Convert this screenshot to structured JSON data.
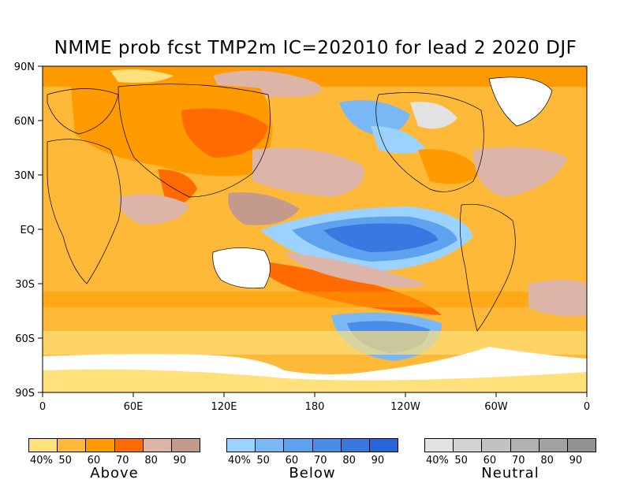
{
  "title": "NMME prob fcst TMP2m IC=202010 for lead 2 2020 DJF",
  "axes": {
    "lat_labels": [
      "90N",
      "60N",
      "30N",
      "EQ",
      "30S",
      "60S",
      "90S"
    ],
    "lon_labels": [
      "0",
      "60E",
      "120E",
      "180",
      "120W",
      "60W",
      "0"
    ]
  },
  "legends": [
    {
      "name": "Above",
      "ticks": [
        "40%",
        "50",
        "60",
        "70",
        "80",
        "90"
      ],
      "colors": [
        "#FFE07A",
        "#FFB938",
        "#FF9A00",
        "#FF6B00",
        "#DDB4A8",
        "#C49A8C"
      ]
    },
    {
      "name": "Below",
      "ticks": [
        "40%",
        "50",
        "60",
        "70",
        "80",
        "90"
      ],
      "colors": [
        "#9CD2FF",
        "#79B7F5",
        "#5EA1EE",
        "#4A8DE6",
        "#3978E0",
        "#2766DA"
      ]
    },
    {
      "name": "Neutral",
      "ticks": [
        "40%",
        "50",
        "60",
        "70",
        "80",
        "90"
      ],
      "colors": [
        "#E2E2E2",
        "#D2D2D2",
        "#C2C2C2",
        "#B2B2B2",
        "#A2A2A2",
        "#929292"
      ]
    }
  ],
  "colors": {
    "background": "#FFFFFF",
    "frame": "#000000",
    "land_outline": "#000000",
    "polar_ice": "#FFFFFF"
  }
}
